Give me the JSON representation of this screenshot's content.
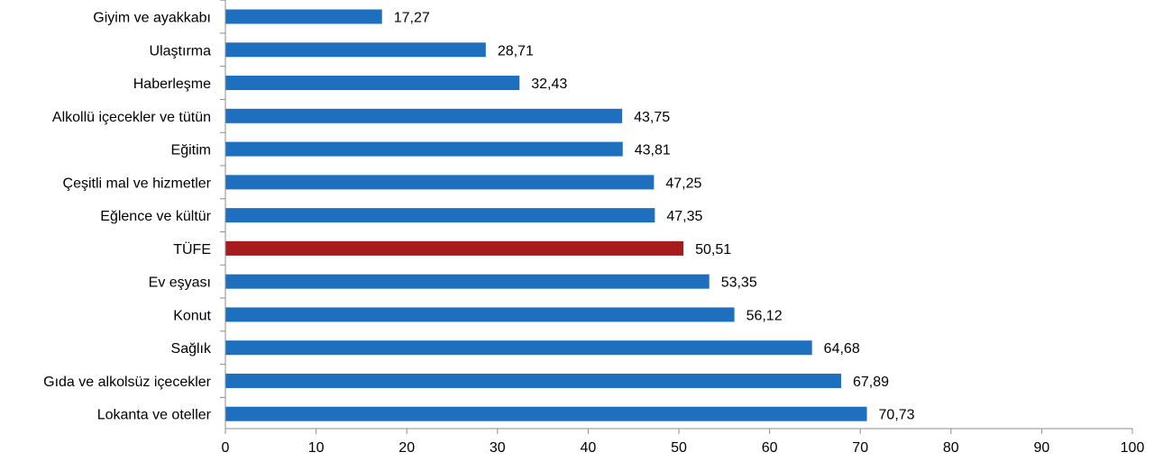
{
  "chart_data": {
    "type": "bar",
    "orientation": "horizontal",
    "categories": [
      "Giyim ve ayakkabı",
      "Ulaştırma",
      "Haberleşme",
      "Alkollü içecekler ve tütün",
      "Eğitim",
      "Çeşitli mal ve hizmetler",
      "Eğlence ve kültür",
      "TÜFE",
      "Ev eşyası",
      "Konut",
      "Sağlık",
      "Gıda ve alkolsüz içecekler",
      "Lokanta ve oteller"
    ],
    "values": [
      17.27,
      28.71,
      32.43,
      43.75,
      43.81,
      47.25,
      47.35,
      50.51,
      53.35,
      56.12,
      64.68,
      67.89,
      70.73
    ],
    "value_labels": [
      "17,27",
      "28,71",
      "32,43",
      "43,75",
      "43,81",
      "47,25",
      "47,35",
      "50,51",
      "53,35",
      "56,12",
      "64,68",
      "67,89",
      "70,73"
    ],
    "xlim": [
      0,
      100
    ],
    "xticks": [
      "0",
      "10",
      "20",
      "30",
      "40",
      "50",
      "60",
      "70",
      "80",
      "90",
      "100"
    ],
    "highlight_category": "TÜFE",
    "colors": {
      "bar": "#1f6fbf",
      "highlight": "#a61b1b",
      "axis": "#8c8c8c"
    },
    "grid": false,
    "legend": "none"
  }
}
